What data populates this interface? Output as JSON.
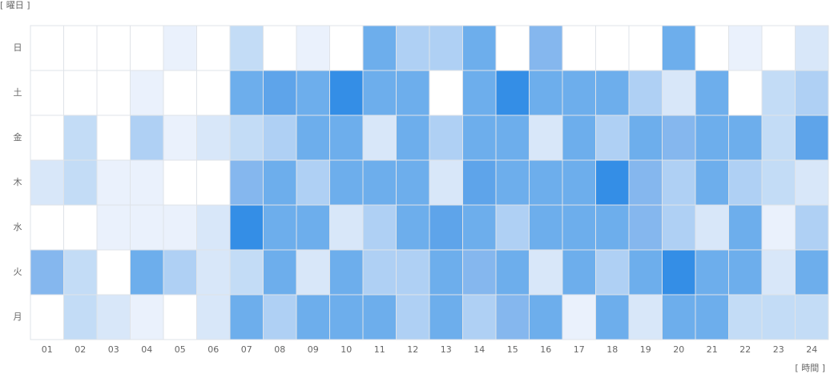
{
  "chart_data": {
    "type": "heatmap",
    "y_label": "[ 曜日 ]",
    "x_label": "[ 時間 ]",
    "x_categories": [
      "01",
      "02",
      "03",
      "04",
      "05",
      "06",
      "07",
      "08",
      "09",
      "10",
      "11",
      "12",
      "13",
      "14",
      "15",
      "16",
      "17",
      "18",
      "19",
      "20",
      "21",
      "22",
      "23",
      "24"
    ],
    "y_categories": [
      "日",
      "土",
      "金",
      "木",
      "水",
      "火",
      "月"
    ],
    "palette": [
      "#ffffff",
      "#eaf1fc",
      "#d8e7f9",
      "#c3dcf6",
      "#afd0f4",
      "#85b7ee",
      "#6daeec",
      "#5ea4ea",
      "#348ee6"
    ],
    "values": [
      [
        0,
        0,
        0,
        0,
        1,
        0,
        3,
        0,
        1,
        0,
        6,
        4,
        4,
        6,
        0,
        5,
        0,
        0,
        0,
        6,
        0,
        1,
        0,
        2
      ],
      [
        0,
        0,
        0,
        1,
        0,
        0,
        6,
        7,
        6,
        8,
        6,
        6,
        0,
        6,
        8,
        6,
        6,
        6,
        4,
        2,
        6,
        0,
        3,
        4
      ],
      [
        0,
        3,
        0,
        4,
        1,
        2,
        3,
        4,
        6,
        6,
        2,
        6,
        4,
        6,
        6,
        2,
        6,
        4,
        6,
        5,
        6,
        6,
        3,
        7
      ],
      [
        2,
        3,
        1,
        1,
        0,
        0,
        5,
        6,
        4,
        6,
        6,
        6,
        2,
        7,
        6,
        6,
        6,
        8,
        5,
        4,
        6,
        4,
        3,
        2
      ],
      [
        0,
        0,
        1,
        1,
        1,
        2,
        8,
        6,
        6,
        2,
        4,
        6,
        7,
        6,
        4,
        6,
        6,
        6,
        5,
        4,
        2,
        6,
        1,
        4
      ],
      [
        5,
        3,
        0,
        6,
        4,
        2,
        3,
        6,
        2,
        6,
        4,
        4,
        6,
        5,
        6,
        2,
        6,
        4,
        6,
        8,
        6,
        6,
        2,
        6
      ],
      [
        0,
        3,
        2,
        1,
        0,
        2,
        6,
        4,
        6,
        6,
        6,
        4,
        6,
        4,
        5,
        6,
        1,
        6,
        2,
        6,
        6,
        3,
        3,
        3
      ]
    ]
  }
}
